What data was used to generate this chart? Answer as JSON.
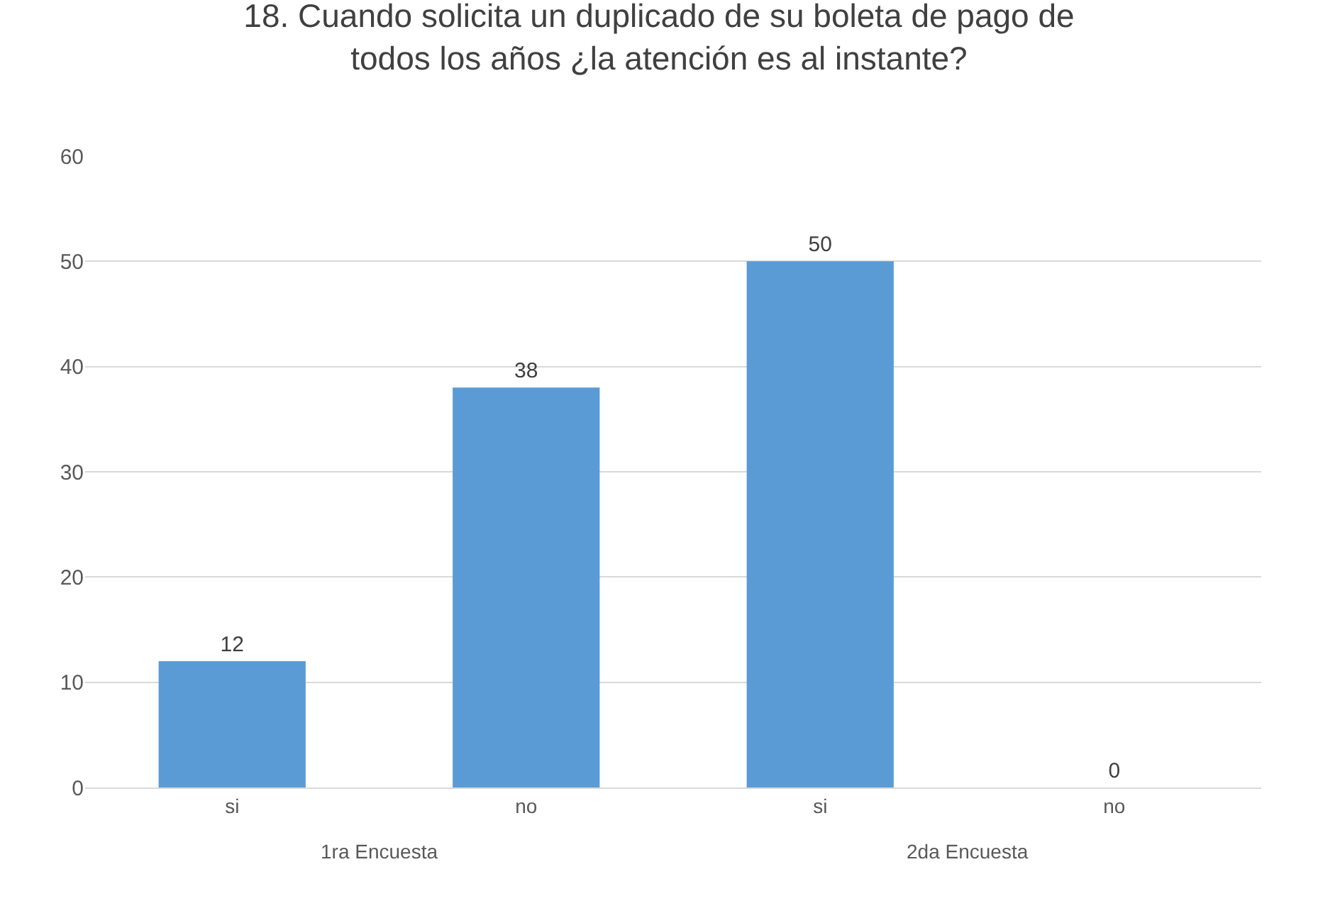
{
  "chart_data": {
    "type": "bar",
    "title": "18. Cuando solicita un duplicado de su boleta de pago de todos los años ¿la atención es al instante?",
    "categories": [
      "si",
      "no",
      "si",
      "no"
    ],
    "values": [
      12,
      38,
      50,
      0
    ],
    "color": "#5b9bd5",
    "ylim": [
      0,
      60
    ],
    "yticks": [
      0,
      10,
      20,
      30,
      40,
      50,
      60
    ],
    "grid": "y",
    "data_labels": true,
    "legend": false,
    "annotations": [
      "1ra Encuesta",
      "2da Encuesta"
    ]
  }
}
